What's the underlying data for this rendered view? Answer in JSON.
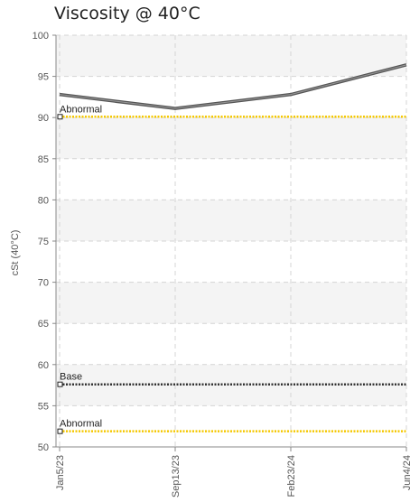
{
  "chart_data": {
    "type": "line",
    "title": "Viscosity @ 40°C",
    "xlabel": "",
    "ylabel": "cSt (40°C)",
    "ylim": [
      50,
      100
    ],
    "yticks": [
      50,
      55,
      60,
      65,
      70,
      75,
      80,
      85,
      90,
      95,
      100
    ],
    "categories": [
      "Jan5/23",
      "Sep13/23",
      "Feb23/24",
      "Jun4/24"
    ],
    "series": [
      {
        "values": [
          92.8,
          91.1,
          92.8,
          96.4
        ],
        "color": "#555555"
      }
    ],
    "reference_lines": [
      {
        "label": "Abnormal",
        "value": 90.1,
        "color": "#f5c800",
        "style": "dotted"
      },
      {
        "label": "Base",
        "value": 57.6,
        "color": "#333333",
        "style": "dotted"
      },
      {
        "label": "Abnormal",
        "value": 51.9,
        "color": "#f5c800",
        "style": "dotted"
      }
    ],
    "grid": true,
    "legend": "none"
  }
}
